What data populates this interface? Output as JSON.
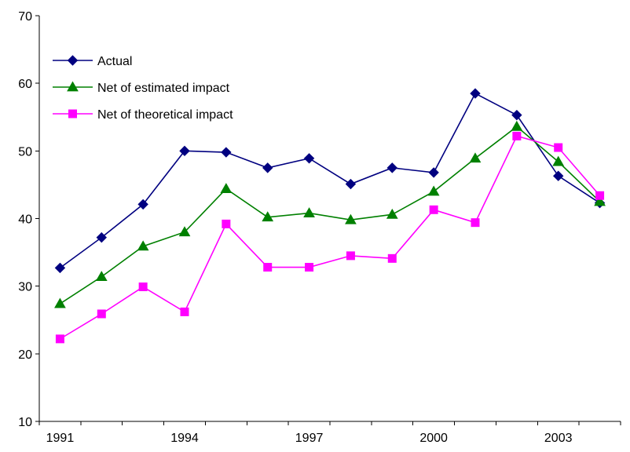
{
  "chart_data": {
    "type": "line",
    "categories": [
      1991,
      1992,
      1993,
      1994,
      1995,
      1996,
      1997,
      1998,
      1999,
      2000,
      2001,
      2002,
      2003,
      2004
    ],
    "x_tick_labels": [
      "1991",
      "1994",
      "1997",
      "2000",
      "2003"
    ],
    "ylim": [
      10,
      70
    ],
    "y_ticks": [
      10,
      20,
      30,
      40,
      50,
      60,
      70
    ],
    "grid": false,
    "legend_position": "top-left",
    "series": [
      {
        "name": "Actual",
        "color": "#000080",
        "marker": "diamond",
        "values": [
          32.7,
          37.2,
          42.1,
          50.0,
          49.8,
          47.5,
          48.9,
          45.1,
          47.5,
          46.8,
          58.5,
          55.3,
          46.3,
          42.3
        ]
      },
      {
        "name": "Net of estimated impact",
        "color": "#008000",
        "marker": "triangle",
        "values": [
          27.4,
          31.4,
          35.9,
          38.0,
          44.4,
          40.2,
          40.8,
          39.8,
          40.6,
          44.0,
          48.9,
          53.6,
          48.4,
          42.5
        ]
      },
      {
        "name": "Net of theoretical impact",
        "color": "#ff00ff",
        "marker": "square",
        "values": [
          22.2,
          25.9,
          29.9,
          26.2,
          39.2,
          32.8,
          32.8,
          34.5,
          34.1,
          41.3,
          39.4,
          52.2,
          50.5,
          43.4
        ]
      }
    ]
  }
}
